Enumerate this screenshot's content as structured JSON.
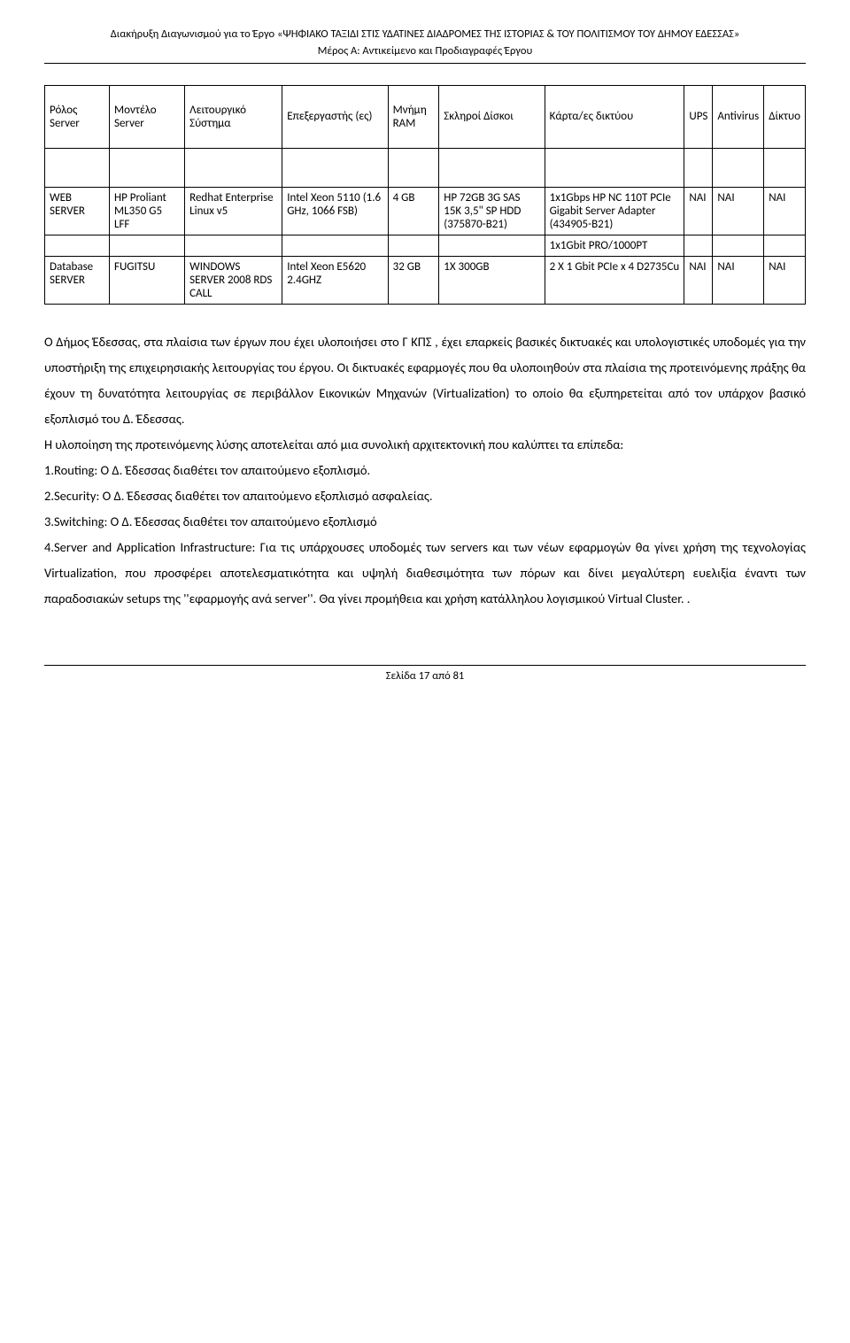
{
  "header": {
    "title": "Διακήρυξη Διαγωνισμού για το Έργο «ΨΗΦΙΑΚΟ ΤΑΞΙΔΙ ΣΤΙΣ ΥΔΑΤΙΝΕΣ ΔΙΑΔΡΟΜΕΣ ΤΗΣ ΙΣΤΟΡΙΑΣ & ΤΟΥ ΠΟΛΙΤΙΣΜΟΥ ΤΟΥ ΔΗΜΟΥ ΈΔΕΣΣΑΣ»",
    "subtitle": "Μέρος Α: Αντικείμενο και Προδιαγραφές Έργου"
  },
  "table": {
    "columns": [
      "Ρόλος Server",
      "Μοντέλο Server",
      "Λειτουργικό Σύστημα",
      "Επεξεργαστής (ες)",
      "Μνήμη RAM",
      "Σκληροί Δίσκοι",
      "Κάρτα/ες δικτύου",
      "UPS",
      "Antivirus",
      "Δίκτυο"
    ],
    "rows": [
      {
        "role": "WEB SERVER",
        "model": "HP Proliant ML350 G5 LFF",
        "os": "Redhat Enterprise Linux v5",
        "cpu": "Intel Xeon 5110 (1.6 GHz, 1066 FSB)",
        "ram": "4 GB",
        "disks": "HP 72GB 3G SAS 15K 3,5\" SP HDD (375870-B21)",
        "net": "1x1Gbps HP NC 110T PCIe Gigabit Server Adapter (434905-B21)",
        "ups": "ΝΑΙ",
        "av": "ΝΑΙ",
        "lan": "ΝΑΙ"
      },
      {
        "netonly": "1x1Gbit PRO/1000PT"
      },
      {
        "role": "Database SERVER",
        "model": "FUGITSU",
        "os": "WINDOWS SERVER 2008 RDS CALL",
        "cpu": "Intel Xeon E5620 2.4GHZ",
        "ram": "32 GB",
        "disks": "1X 300GB",
        "net": "2 X 1 Gbit PCIe x 4 D2735Cu",
        "ups": "ΝΑΙ",
        "av": "ΝΑΙ",
        "lan": "ΝΑΙ"
      }
    ]
  },
  "body": {
    "p1": "Ο Δήμος Έδεσσας, στα πλαίσια των έργων που έχει υλοποιήσει στο Γ ΚΠΣ , έχει επαρκείς βασικές δικτυακές και υπολογιστικές υποδομές για την υποστήριξη της επιχειρησιακής λειτουργίας του έργου. Οι δικτυακές εφαρμογές που θα υλοποιηθούν στα πλαίσια της προτεινόμενης πράξης θα έχουν τη δυνατότητα λειτουργίας σε περιβάλλον Εικονικών Μηχανών (Virtualization) το οποίο θα εξυπηρετείται από τον υπάρχον βασικό εξοπλισμό του Δ. Έδεσσας.",
    "p2": "Η υλοποίηση της προτεινόμενης λύσης αποτελείται από μια συνολική αρχιτεκτονική που καλύπτει τα επίπεδα:",
    "l1": "1.Routing: Ο Δ. Έδεσσας διαθέτει τον απαιτούμενο εξοπλισμό.",
    "l2": "2.Security: Ο Δ. Έδεσσας διαθέτει τον απαιτούμενο εξοπλισμό ασφαλείας.",
    "l3": "3.Switching: Ο Δ. Έδεσσας διαθέτει τον απαιτούμενο εξοπλισμό",
    "l4": "4.Server and Application Infrastructure: Για τις υπάρχουσες υποδομές των servers και των νέων εφαρμογών θα γίνει χρήση της τεχνολογίας Virtualization, που προσφέρει αποτελεσματικότητα και υψηλή διαθεσιμότητα των πόρων και δίνει μεγαλύτερη ευελιξία έναντι των παραδοσιακών setups της ''εφαρμογής ανά server''. Θα γίνει προμήθεια και χρήση κατάλληλου λογισμικού Virtual Cluster. ."
  },
  "footer": {
    "text": "Σελίδα 17 από 81"
  }
}
